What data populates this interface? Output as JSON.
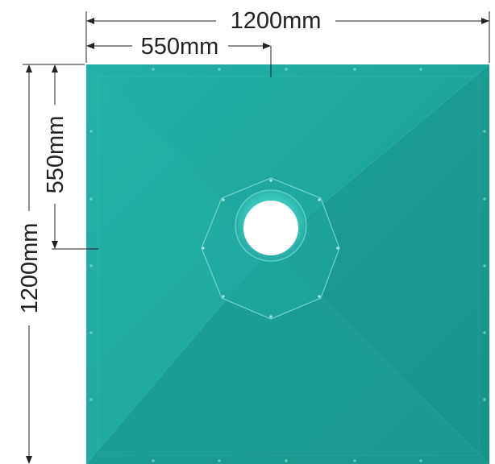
{
  "dimensions": {
    "total_width_label": "1200mm",
    "offset_width_label": "550mm",
    "total_height_label": "1200mm",
    "offset_height_label": "550mm"
  },
  "colors": {
    "tray_fill": "#1ea8a0",
    "tray_dark": "#178d86",
    "tray_light": "#2cb8ae",
    "outlet_ring": "#5ccfc6",
    "dimension_line": "#222222"
  },
  "icons": {
    "drain_hole": "drain-hole-icon",
    "arrow": "arrow-head-icon"
  }
}
